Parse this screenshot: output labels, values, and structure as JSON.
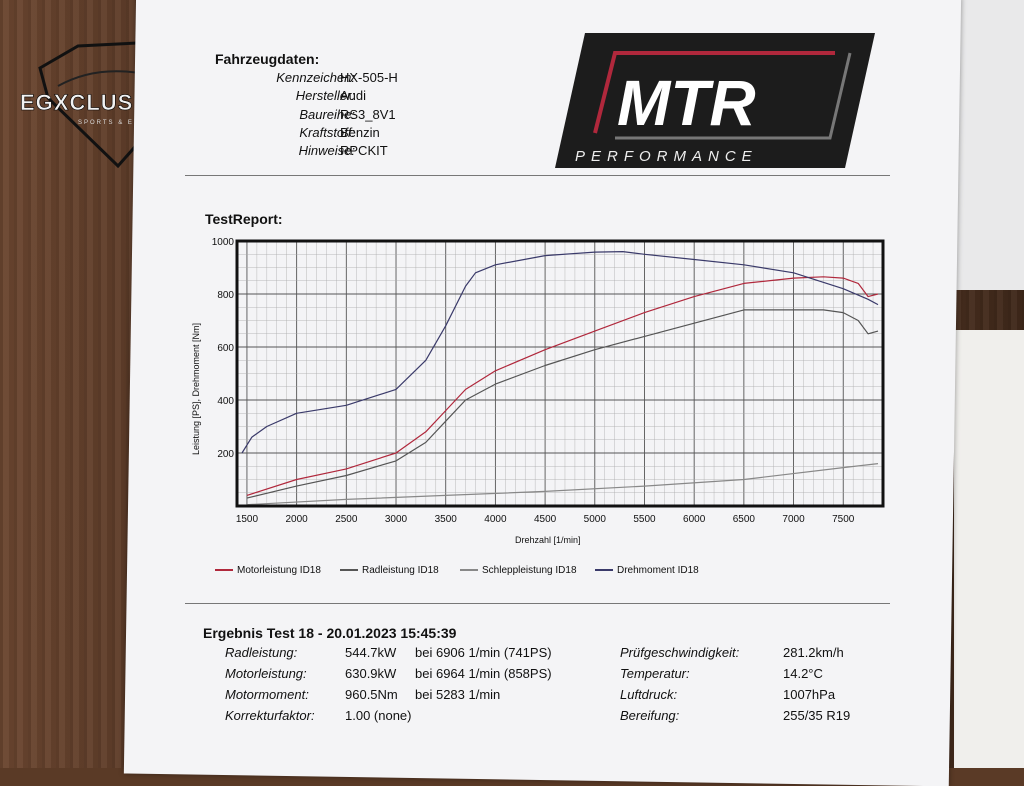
{
  "brand": {
    "left_logo_text": "EGXCLUSIVE",
    "left_logo_sub": "SPORTS & EX",
    "right_logo_text": "MTR",
    "right_logo_sub": "PERFORMANCE"
  },
  "vehicle": {
    "title": "Fahrzeugdaten:",
    "rows": [
      {
        "label": "Kennzeichen:",
        "value": "HX-505-H"
      },
      {
        "label": "Hersteller:",
        "value": "Audi"
      },
      {
        "label": "Baureihe:",
        "value": "RS3_8V1"
      },
      {
        "label": "Kraftstoff:",
        "value": "Benzin"
      },
      {
        "label": "Hinweise:",
        "value": "RPCKIT"
      }
    ]
  },
  "report": {
    "title": "TestReport:"
  },
  "chart_data": {
    "type": "line",
    "ylabel": "Leistung [PS], Drehmoment [Nm]",
    "xlabel": "Drehzahl [1/min]",
    "xlim": [
      1400,
      7900
    ],
    "ylim": [
      0,
      1000
    ],
    "xticks": [
      1500,
      2000,
      2500,
      3000,
      3500,
      4000,
      4500,
      5000,
      5500,
      6000,
      6500,
      7000,
      7500
    ],
    "yticks": [
      200,
      400,
      600,
      800,
      1000
    ],
    "grid": true,
    "series": [
      {
        "name": "Motorleistung ID18",
        "color": "#b0283c",
        "x": [
          1500,
          2000,
          2500,
          3000,
          3300,
          3500,
          3700,
          4000,
          4500,
          5000,
          5500,
          6000,
          6500,
          7000,
          7300,
          7500,
          7650,
          7750,
          7850
        ],
        "y": [
          40,
          100,
          140,
          200,
          280,
          360,
          440,
          510,
          590,
          660,
          730,
          790,
          840,
          860,
          865,
          860,
          840,
          790,
          800
        ]
      },
      {
        "name": "Radleistung ID18",
        "color": "#555555",
        "x": [
          1500,
          2000,
          2500,
          3000,
          3300,
          3500,
          3700,
          4000,
          4500,
          5000,
          5500,
          6000,
          6500,
          7000,
          7300,
          7500,
          7650,
          7750,
          7850
        ],
        "y": [
          30,
          75,
          115,
          170,
          240,
          320,
          400,
          460,
          530,
          590,
          640,
          690,
          740,
          740,
          740,
          730,
          700,
          650,
          660
        ]
      },
      {
        "name": "Schleppleistung ID18",
        "color": "#888888",
        "x": [
          1500,
          2500,
          3500,
          4500,
          5500,
          6500,
          7500,
          7850
        ],
        "y": [
          5,
          25,
          40,
          55,
          75,
          100,
          145,
          160
        ]
      },
      {
        "name": "Drehmoment ID18",
        "color": "#3a3a6a",
        "x": [
          1450,
          1550,
          1700,
          2000,
          2500,
          3000,
          3300,
          3500,
          3700,
          3800,
          4000,
          4500,
          5000,
          5283,
          5500,
          6000,
          6500,
          7000,
          7500,
          7750,
          7850
        ],
        "y": [
          200,
          260,
          300,
          350,
          380,
          440,
          550,
          680,
          830,
          880,
          910,
          945,
          958,
          960,
          950,
          930,
          910,
          880,
          820,
          780,
          760
        ]
      }
    ]
  },
  "legend": [
    {
      "label": "Motorleistung ID18",
      "color": "#b0283c"
    },
    {
      "label": "Radleistung ID18",
      "color": "#555555"
    },
    {
      "label": "Schleppleistung ID18",
      "color": "#888888"
    },
    {
      "label": "Drehmoment ID18",
      "color": "#3a3a6a"
    }
  ],
  "results": {
    "title": "Ergebnis Test 18 - 20.01.2023 15:45:39",
    "left": [
      {
        "label": "Radleistung:",
        "value": "544.7kW",
        "extra": "bei 6906 1/min (741PS)"
      },
      {
        "label": "Motorleistung:",
        "value": "630.9kW",
        "extra": "bei 6964 1/min (858PS)"
      },
      {
        "label": "Motormoment:",
        "value": "960.5Nm",
        "extra": "bei 5283 1/min"
      },
      {
        "label": "Korrekturfaktor:",
        "value": "1.00 (none)",
        "extra": ""
      }
    ],
    "right": [
      {
        "label": "Prüfgeschwindigkeit:",
        "value": "281.2km/h"
      },
      {
        "label": "Temperatur:",
        "value": "14.2°C"
      },
      {
        "label": "Luftdruck:",
        "value": "1007hPa"
      },
      {
        "label": "Bereifung:",
        "value": "255/35 R19"
      }
    ]
  }
}
